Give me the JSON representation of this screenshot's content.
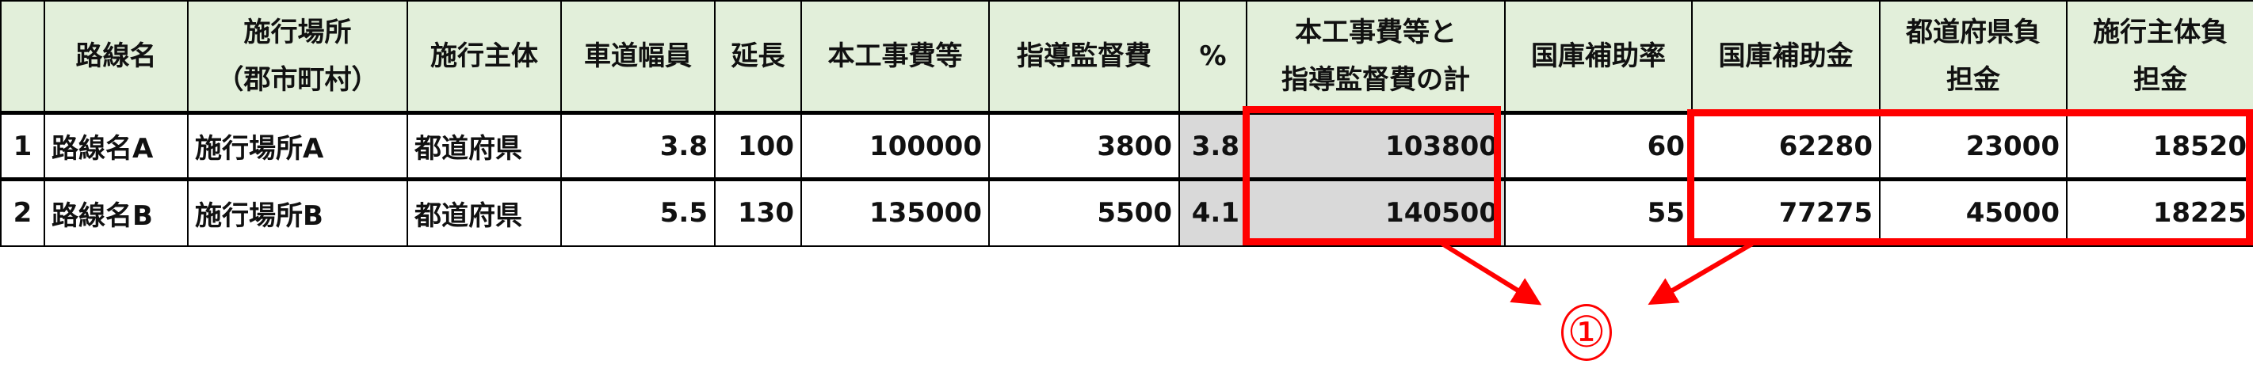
{
  "table": {
    "headers": [
      {
        "line1": ""
      },
      {
        "line1": "路線名"
      },
      {
        "line1": "施行場所",
        "line2": "（郡市町村）"
      },
      {
        "line1": "施行主体"
      },
      {
        "line1": "車道幅員"
      },
      {
        "line1": "延長"
      },
      {
        "line1": "本工事費等"
      },
      {
        "line1": "指導監督費"
      },
      {
        "line1": "%"
      },
      {
        "line1": "本工事費等と",
        "line2": "指導監督費の計"
      },
      {
        "line1": "国庫補助率"
      },
      {
        "line1": "国庫補助金"
      },
      {
        "line1": "都道府県負",
        "line2": "担金"
      },
      {
        "line1": "施行主体負",
        "line2": "担金"
      }
    ],
    "rows": [
      [
        "1",
        "路線名A",
        "施行場所A",
        "都道府県",
        "3.8",
        "100",
        "100000",
        "3800",
        "3.8",
        "103800",
        "60",
        "62280",
        "23000",
        "18520"
      ],
      [
        "2",
        "路線名B",
        "施行場所B",
        "都道府県",
        "5.5",
        "130",
        "135000",
        "5500",
        "4.1",
        "140500",
        "55",
        "77275",
        "45000",
        "18225"
      ]
    ]
  },
  "annotation": {
    "label": "①",
    "color": "#ff0000"
  },
  "colors": {
    "header_bg": "#e2efda",
    "highlight_cell_bg": "#d9d9d9"
  }
}
